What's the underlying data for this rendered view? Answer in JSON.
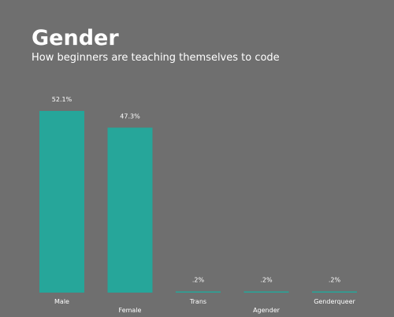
{
  "chart_data": {
    "type": "bar",
    "title": "Gender",
    "subtitle": "How beginners are teaching themselves to code",
    "categories": [
      "Male",
      "Female",
      "Trans",
      "Agender",
      "Genderqueer"
    ],
    "values": [
      52.1,
      47.3,
      0.2,
      0.2,
      0.2
    ],
    "value_labels": [
      "52.1%",
      "47.3%",
      ".2%",
      ".2%",
      ".2%"
    ],
    "ylim": [
      0,
      52.1
    ],
    "grid": false,
    "legend": "none",
    "colors": {
      "background": "#6f6f6f",
      "bar": "#26a69a",
      "text": "#ffffff"
    }
  }
}
